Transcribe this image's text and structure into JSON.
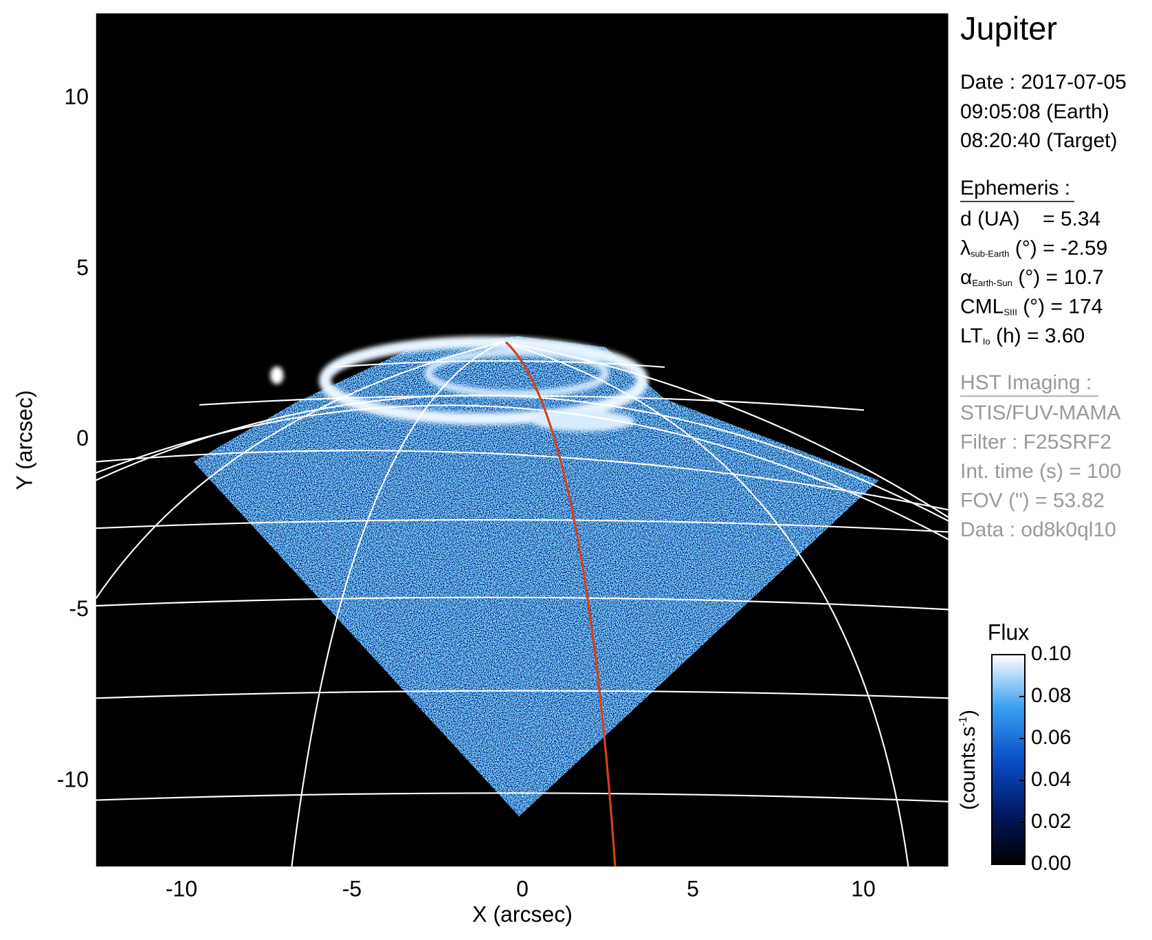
{
  "chart_data": {
    "type": "image",
    "title": "Jupiter",
    "xlabel": "X (arcsec)",
    "ylabel": "Y (arcsec)",
    "xlim": [
      -12.5,
      12.5
    ],
    "ylim": [
      -12.5,
      12.5
    ],
    "xticks": [
      -10,
      -5,
      0,
      5,
      10
    ],
    "yticks": [
      -10,
      -5,
      0,
      5,
      10
    ],
    "info": {
      "date": [
        "Date : 2017-07-05",
        "09:05:08 (Earth)",
        "08:20:40 (Target)"
      ],
      "ephemeris_title": "Ephemeris :",
      "ephemeris": [
        {
          "head": "d (UA)    = 5.34"
        },
        {
          "head": "λ",
          "sub": "sub-Earth",
          "text": " (°) = -2.59"
        },
        {
          "head": "α",
          "sub": "Earth-Sun",
          "text": " (°) = 10.7"
        },
        {
          "head": "CML",
          "sub": "SIII",
          "text": " (°) = 174"
        },
        {
          "head": "LT",
          "sub": "Io",
          "text": " (h) = 3.60"
        }
      ],
      "imaging_title": "HST Imaging :",
      "imaging": [
        "STIS/FUV-MAMA",
        "Filter : F25SRF2",
        "Int. time (s) = 100",
        "FOV (\") = 53.82",
        "Data : od8k0ql10"
      ]
    },
    "colorbar": {
      "title": "Flux",
      "label": {
        "text": "(counts.s",
        "sup": "-1",
        "end": ")"
      },
      "lim": [
        0,
        0.1
      ],
      "ticks": [
        {
          "value": 0,
          "label": "0.00"
        },
        0.02,
        0.04,
        0.06,
        0.08,
        {
          "value": 0.1,
          "label": "0.10"
        }
      ]
    }
  }
}
